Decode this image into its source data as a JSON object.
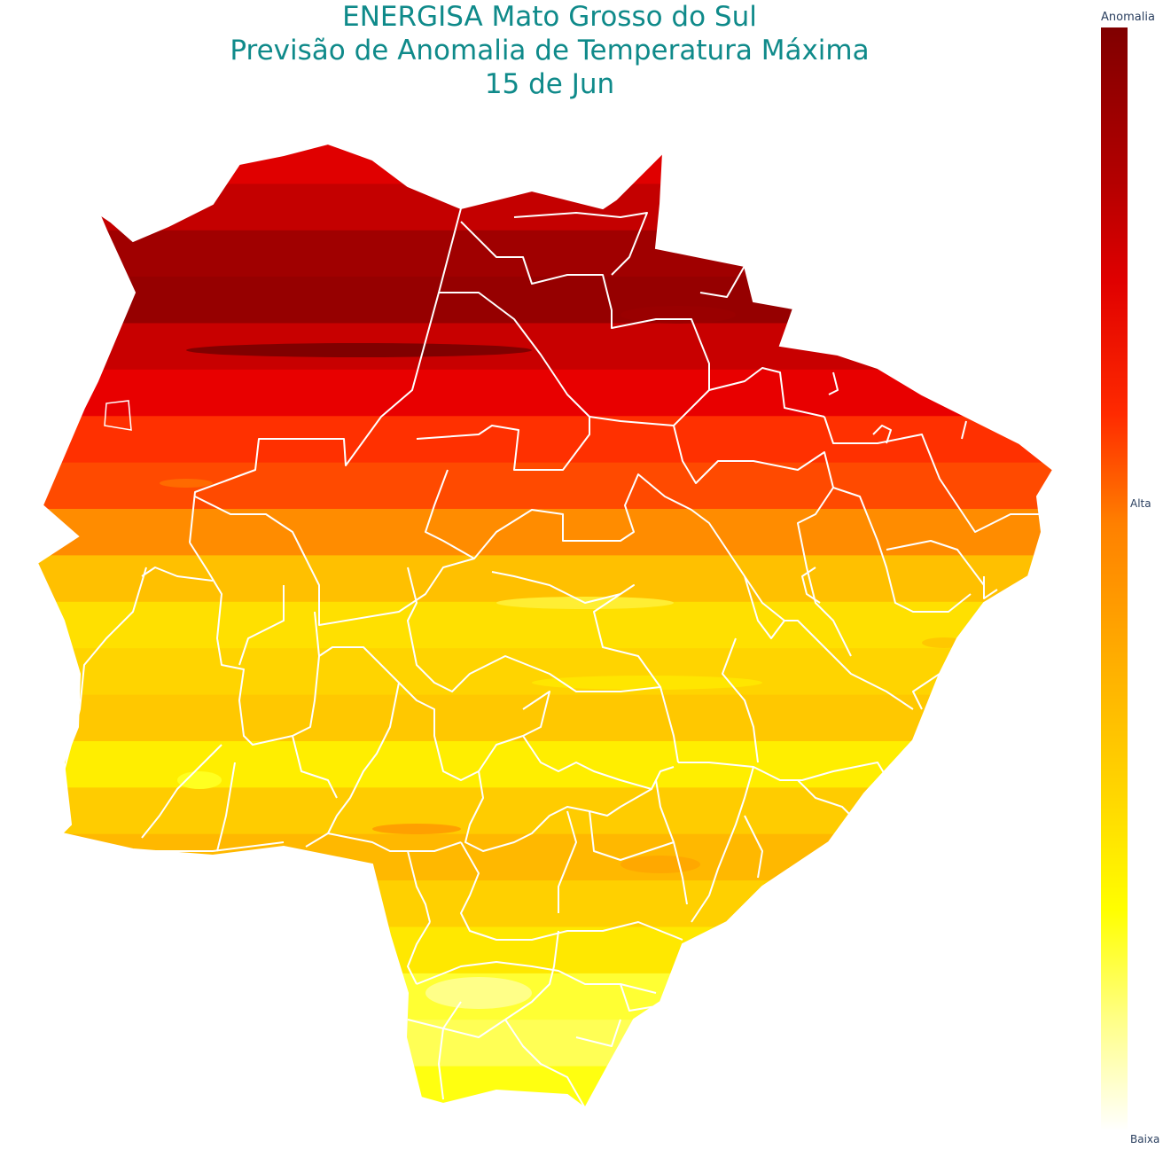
{
  "title": {
    "line1": "ENERGISA Mato Grosso do Sul",
    "line2": "Previsão de Anomalia de Temperatura Máxima",
    "line3": "15 de Jun"
  },
  "colorbar": {
    "title": "Anomalia",
    "ticks": {
      "high": "Alta",
      "low": "Baixa"
    },
    "colors": [
      "#800000",
      "#b40000",
      "#e00000",
      "#ff2a00",
      "#ff8000",
      "#ffb000",
      "#ffd800",
      "#ffff00",
      "#ffff88",
      "#ffffff"
    ]
  },
  "map": {
    "region": "Mato Grosso do Sul",
    "border_color": "#ffffff",
    "bands": [
      "#e00000",
      "#c40000",
      "#a00000",
      "#960000",
      "#c80000",
      "#e80000",
      "#ff3000",
      "#ff4a00",
      "#ff8c00",
      "#ffc000",
      "#ffe000",
      "#ffd400",
      "#ffc800",
      "#ffee00",
      "#ffcc00",
      "#ffb800",
      "#ffd000",
      "#ffe800",
      "#ffff33",
      "#ffff55",
      "#ffff10"
    ]
  }
}
